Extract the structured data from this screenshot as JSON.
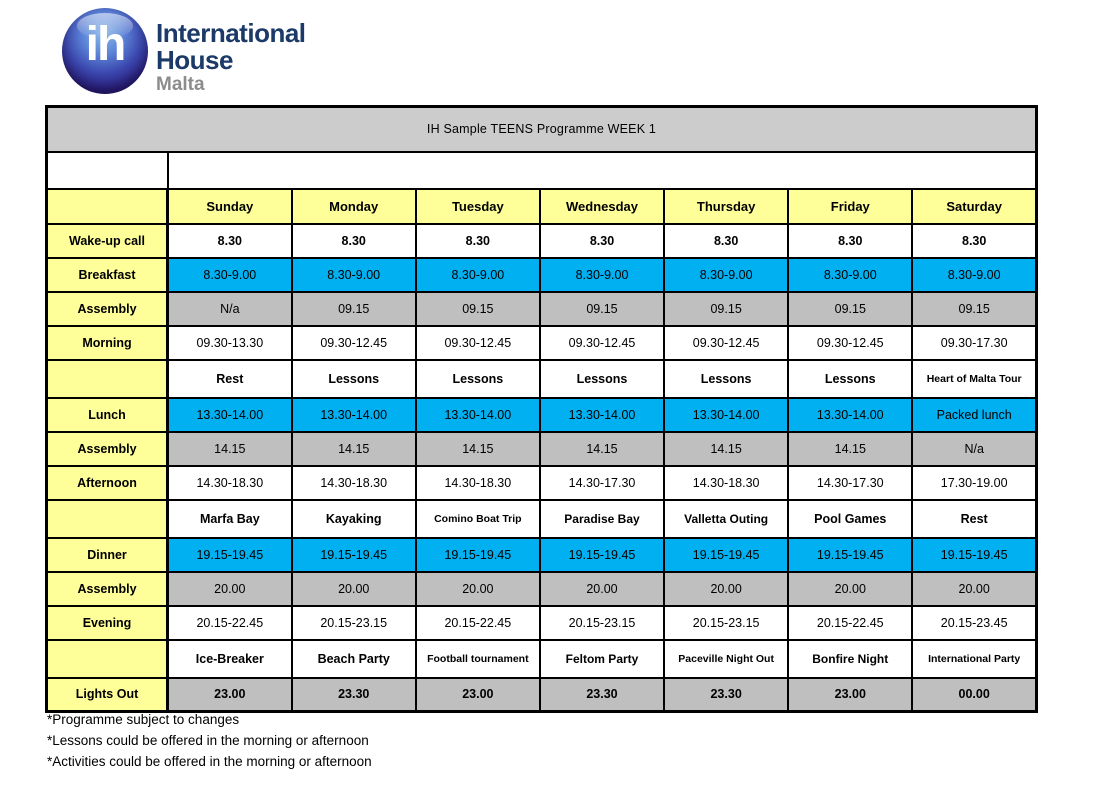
{
  "colors": {
    "header_yellow": "#ffff99",
    "meal_cyan": "#00b0f0",
    "assembly_gray": "#bfbfbf",
    "title_gray": "#cccccc",
    "logo_navy": "#1b3a68",
    "logo_gray": "#8c8c8c"
  },
  "logo": {
    "monogram": "ih",
    "name_line1": "International",
    "name_line2": "House",
    "location": "Malta"
  },
  "table": {
    "title": "IH Sample TEENS Programme WEEK 1",
    "days": [
      "Sunday",
      "Monday",
      "Tuesday",
      "Wednesday",
      "Thursday",
      "Friday",
      "Saturday"
    ],
    "rows": [
      {
        "label": "Wake-up call",
        "type": "wake",
        "cells": [
          "8.30",
          "8.30",
          "8.30",
          "8.30",
          "8.30",
          "8.30",
          "8.30"
        ]
      },
      {
        "label": "Breakfast",
        "type": "meal",
        "cells": [
          "8.30-9.00",
          "8.30-9.00",
          "8.30-9.00",
          "8.30-9.00",
          "8.30-9.00",
          "8.30-9.00",
          "8.30-9.00"
        ]
      },
      {
        "label": "Assembly",
        "type": "assembly",
        "cells": [
          "N/a",
          "09.15",
          "09.15",
          "09.15",
          "09.15",
          "09.15",
          "09.15"
        ]
      },
      {
        "label": "Morning",
        "type": "session",
        "cells": [
          "09.30-13.30",
          "09.30-12.45",
          "09.30-12.45",
          "09.30-12.45",
          "09.30-12.45",
          "09.30-12.45",
          "09.30-17.30"
        ]
      },
      {
        "label": "",
        "type": "activity",
        "cells": [
          "Rest",
          "Lessons",
          "Lessons",
          "Lessons",
          "Lessons",
          "Lessons",
          "Heart of Malta Tour"
        ]
      },
      {
        "label": "Lunch",
        "type": "meal",
        "cells": [
          "13.30-14.00",
          "13.30-14.00",
          "13.30-14.00",
          "13.30-14.00",
          "13.30-14.00",
          "13.30-14.00",
          "Packed lunch"
        ]
      },
      {
        "label": "Assembly",
        "type": "assembly",
        "cells": [
          "14.15",
          "14.15",
          "14.15",
          "14.15",
          "14.15",
          "14.15",
          "N/a"
        ]
      },
      {
        "label": "Afternoon",
        "type": "session",
        "cells": [
          "14.30-18.30",
          "14.30-18.30",
          "14.30-18.30",
          "14.30-17.30",
          "14.30-18.30",
          "14.30-17.30",
          "17.30-19.00"
        ]
      },
      {
        "label": "",
        "type": "activity",
        "cells": [
          "Marfa Bay",
          "Kayaking",
          "Comino Boat Trip",
          "Paradise Bay",
          "Valletta Outing",
          "Pool Games",
          "Rest"
        ]
      },
      {
        "label": "Dinner",
        "type": "meal",
        "cells": [
          "19.15-19.45",
          "19.15-19.45",
          "19.15-19.45",
          "19.15-19.45",
          "19.15-19.45",
          "19.15-19.45",
          "19.15-19.45"
        ]
      },
      {
        "label": "Assembly",
        "type": "assembly",
        "cells": [
          "20.00",
          "20.00",
          "20.00",
          "20.00",
          "20.00",
          "20.00",
          "20.00"
        ]
      },
      {
        "label": "Evening",
        "type": "session",
        "cells": [
          "20.15-22.45",
          "20.15-23.15",
          "20.15-22.45",
          "20.15-23.15",
          "20.15-23.15",
          "20.15-22.45",
          "20.15-23.45"
        ]
      },
      {
        "label": "",
        "type": "activity",
        "cells": [
          "Ice-Breaker",
          "Beach Party",
          "Football tournament",
          "Feltom Party",
          "Paceville Night Out",
          "Bonfire Night",
          "International Party"
        ]
      },
      {
        "label": "Lights Out",
        "type": "lights",
        "cells": [
          "23.00",
          "23.30",
          "23.00",
          "23.30",
          "23.30",
          "23.00",
          "00.00"
        ]
      }
    ]
  },
  "footnotes": [
    "*Programme subject to changes",
    "*Lessons could be offered in the morning or afternoon",
    "*Activities could be offered in the morning or afternoon"
  ]
}
